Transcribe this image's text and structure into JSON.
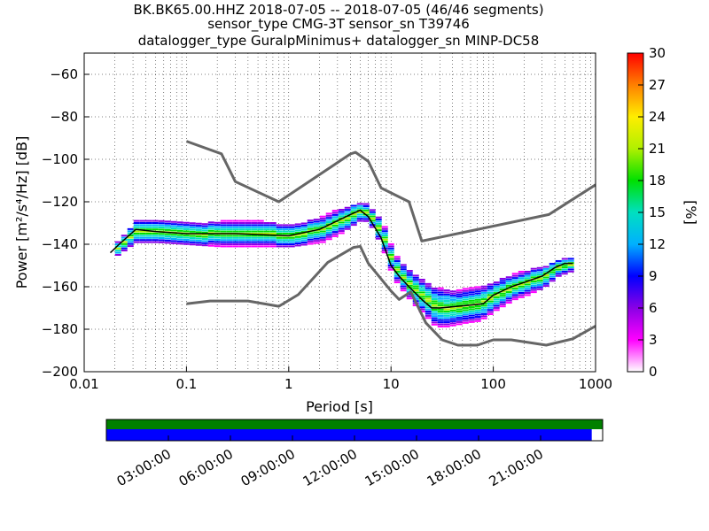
{
  "title_lines": [
    "BK.BK65.00.HHZ   2018-07-05 -- 2018-07-05  (46/46 segments)",
    "sensor_type CMG-3T sensor_sn T39746",
    "datalogger_type GuralpMinimus+ datalogger_sn MINP-DC58"
  ],
  "chart_data": {
    "type": "heatmap",
    "xlabel": "Period [s]",
    "ylabel": "Power [m²/s⁴/Hz] [dB]",
    "xscale": "log",
    "xlim": [
      0.01,
      1000
    ],
    "ylim": [
      -200,
      -50
    ],
    "x_ticks": [
      0.01,
      0.1,
      1,
      10,
      100,
      1000
    ],
    "x_tick_labels": [
      "0.01",
      "0.1",
      "1",
      "10",
      "100",
      "1000"
    ],
    "y_ticks": [
      -200,
      -180,
      -160,
      -140,
      -120,
      -100,
      -80,
      -60
    ],
    "y_tick_labels": [
      "−200",
      "−180",
      "−160",
      "−140",
      "−120",
      "−100",
      "−80",
      "−60"
    ],
    "grid": true,
    "colorbar": {
      "label": "[%]",
      "min": 0,
      "max": 30,
      "ticks": [
        0,
        3,
        6,
        9,
        12,
        15,
        18,
        21,
        24,
        27,
        30
      ],
      "colors": [
        "#ffffff",
        "#ff00ff",
        "#8a00e6",
        "#0000ff",
        "#00b0ff",
        "#00e0c0",
        "#00e000",
        "#b0f000",
        "#ffee00",
        "#ff8000",
        "#ff0000"
      ]
    },
    "series": [
      {
        "style": "grey bold line",
        "x": [
          0.1,
          0.22,
          0.3,
          0.8,
          4.0,
          4.5,
          6.0,
          8.0,
          15.0,
          20.0,
          350,
          1000
        ],
        "y": [
          -91.5,
          -97.4,
          -110.5,
          -120.0,
          -97.5,
          -96.7,
          -101.0,
          -113.5,
          -120.0,
          -138.5,
          -126.0,
          -112.0
        ]
      },
      {
        "style": "grey bold line",
        "x": [
          0.1,
          0.17,
          0.4,
          0.8,
          1.24,
          2.4,
          4.3,
          5.0,
          6.0,
          10.0,
          12.0,
          15.6,
          21.9,
          31.6,
          45.0,
          70.0,
          100,
          150,
          330,
          600,
          1000
        ],
        "y": [
          -168.0,
          -166.7,
          -166.7,
          -169.2,
          -163.7,
          -148.6,
          -141.5,
          -141.0,
          -149.0,
          -162.0,
          -166.0,
          -162.4,
          -177.0,
          -185.0,
          -187.5,
          -187.5,
          -185.0,
          -185.0,
          -187.5,
          -184.5,
          -178.5
        ],
        "y_end": -178.5
      },
      {
        "style": "black mode line",
        "x": [
          0.018,
          0.022,
          0.032,
          0.05,
          0.1,
          0.3,
          1.0,
          2.0,
          4.0,
          5.0,
          6.0,
          8.0,
          10.0,
          12.0,
          15.0,
          20.0,
          25.0,
          30.0,
          50.0,
          80.0,
          100,
          150,
          200,
          300,
          400,
          500,
          600
        ],
        "y": [
          -144.0,
          -140.0,
          -133.0,
          -134.0,
          -135.0,
          -135.0,
          -136.0,
          -133.0,
          -126.0,
          -124.0,
          -127.0,
          -137.0,
          -150.0,
          -155.0,
          -160.0,
          -166.0,
          -170.0,
          -170.0,
          -169.0,
          -168.0,
          -164.0,
          -160.0,
          -158.0,
          -155.0,
          -151.0,
          -149.0,
          -149.0
        ]
      }
    ],
    "ppsd_band": {
      "x": [
        0.02,
        0.03,
        0.05,
        0.1,
        0.2,
        0.3,
        0.5,
        1.0,
        2.0,
        3.0,
        4.0,
        5.0,
        6.0,
        7.0,
        8.0,
        10.0,
        12.0,
        15.0,
        20.0,
        25.0,
        30.0,
        40.0,
        50.0,
        70.0,
        100,
        150,
        200,
        300,
        400,
        600
      ],
      "center": [
        -142,
        -134,
        -134,
        -135,
        -135,
        -135,
        -135,
        -136,
        -133,
        -129,
        -126,
        -124,
        -127,
        -132,
        -137,
        -150,
        -155,
        -160,
        -165,
        -169,
        -170,
        -170,
        -169,
        -168,
        -164,
        -160,
        -158,
        -155,
        -151,
        -149
      ],
      "spread": [
        3,
        5,
        5,
        5,
        6,
        6,
        6,
        5,
        6,
        6,
        5,
        4,
        4,
        5,
        6,
        6,
        6,
        7,
        8,
        9,
        9,
        8,
        8,
        8,
        7,
        6,
        6,
        5,
        4,
        3
      ]
    },
    "timeline": {
      "tick_labels": [
        "03:00:00",
        "06:00:00",
        "09:00:00",
        "12:00:00",
        "15:00:00",
        "18:00:00",
        "21:00:00"
      ],
      "top_bar_coverage": [
        0,
        1
      ],
      "bottom_bar_coverage": [
        0,
        0.978
      ],
      "top_bar_color": "#008000",
      "bottom_bar_color": "#0000ff"
    }
  }
}
